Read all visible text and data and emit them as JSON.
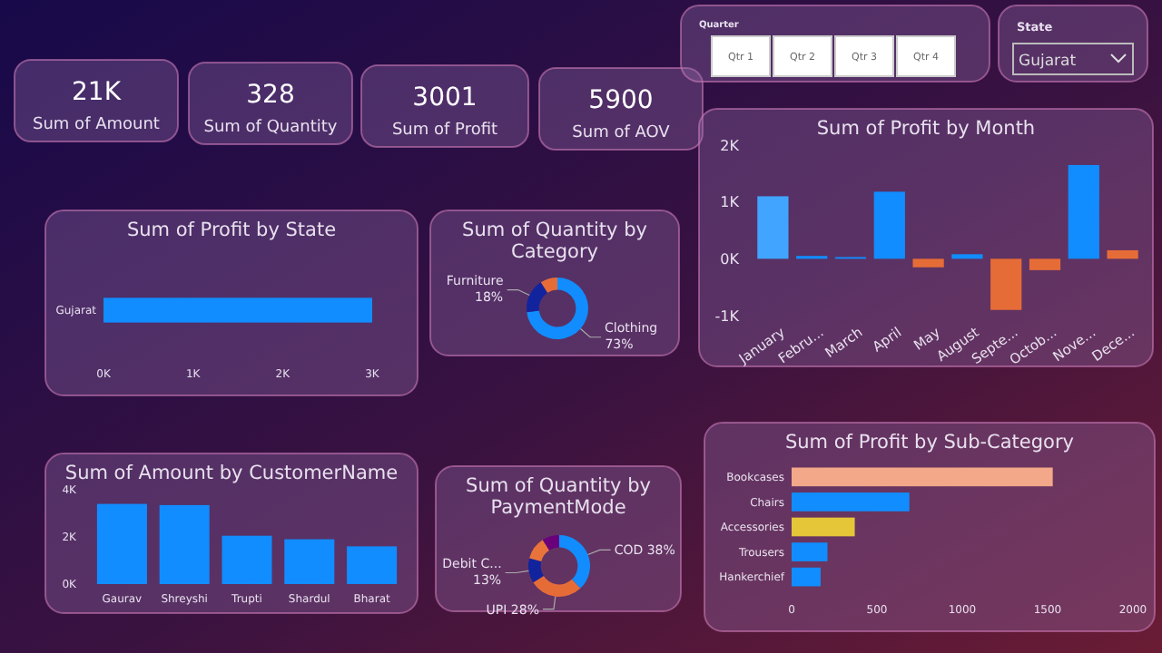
{
  "chart_data": [
    {
      "type": "other",
      "annotations": [
        "21K",
        "Sum of Amount",
        "328",
        "Sum of Quantity",
        "3001",
        "Sum of Profit",
        "5900",
        "Sum of AOV"
      ]
    },
    {
      "type": "other",
      "title": "Quarter",
      "annotations": [
        "Qtr 1",
        "Qtr 2",
        "Qtr 3",
        "Qtr 4"
      ]
    },
    {
      "type": "other",
      "title": "State",
      "annotations": [
        "Gujarat"
      ]
    },
    {
      "type": "bar",
      "title": "Sum of Profit by Month",
      "categories": [
        "January",
        "Febru...",
        "March",
        "April",
        "May",
        "August",
        "Septe...",
        "Octob...",
        "Nove...",
        "Dece..."
      ],
      "values": [
        1100,
        50,
        30,
        1180,
        -150,
        80,
        -900,
        -200,
        1650,
        150
      ],
      "colors": [
        "#41a5ff",
        "#118dff",
        "#118dff",
        "#118dff",
        "#e66c37",
        "#118dff",
        "#e66c37",
        "#e66c37",
        "#118dff",
        "#e66c37"
      ],
      "ylim": [
        -1000,
        2000
      ],
      "yticks": [
        {
          "value": -1000,
          "label": "-1K"
        },
        {
          "value": 0,
          "label": "0K"
        },
        {
          "value": 1000,
          "label": "1K"
        },
        {
          "value": 2000,
          "label": "2K"
        }
      ]
    },
    {
      "type": "bar",
      "orientation": "horizontal",
      "title": "Sum of Profit by State",
      "categories": [
        "Gujarat"
      ],
      "values": [
        3000
      ],
      "color": "#118dff",
      "xlim": [
        0,
        3000
      ],
      "xticks": [
        {
          "value": 0,
          "label": "0K"
        },
        {
          "value": 1000,
          "label": "1K"
        },
        {
          "value": 2000,
          "label": "2K"
        },
        {
          "value": 3000,
          "label": "3K"
        }
      ]
    },
    {
      "type": "donut",
      "title": "Sum of Quantity by Category",
      "categories": [
        "Clothing",
        "Furniture",
        null
      ],
      "values": [
        73,
        18,
        9
      ],
      "colors": [
        "#118dff",
        "#12239e",
        "#e66c37"
      ],
      "value_labels": [
        "73%",
        "18%",
        null
      ]
    },
    {
      "type": "bar",
      "title": "Sum of Amount by CustomerName",
      "categories": [
        "Gaurav",
        "Shreyshi",
        "Trupti",
        "Shardul",
        "Bharat"
      ],
      "values": [
        3400,
        3350,
        2050,
        1900,
        1600
      ],
      "color": "#118dff",
      "ylim": [
        0,
        4000
      ],
      "yticks": [
        {
          "value": 0,
          "label": "0K"
        },
        {
          "value": 2000,
          "label": "2K"
        },
        {
          "value": 4000,
          "label": "4K"
        }
      ]
    },
    {
      "type": "donut",
      "title": "Sum of Quantity by PaymentMode",
      "categories": [
        "COD",
        "UPI",
        "Debit C...",
        null,
        null
      ],
      "values": [
        38,
        28,
        13,
        12,
        9
      ],
      "colors": [
        "#118dff",
        "#e66c37",
        "#12239e",
        "#e8743b",
        "#6b007b"
      ],
      "value_labels": [
        "38%",
        "28%",
        "13%",
        null,
        null
      ]
    },
    {
      "type": "bar",
      "orientation": "horizontal",
      "title": "Sum of Profit by Sub-Category",
      "categories": [
        "Bookcases",
        "Chairs",
        "Accessories",
        "Trousers",
        "Hankerchief"
      ],
      "values": [
        1530,
        690,
        370,
        210,
        170
      ],
      "colors": [
        "#f2a889",
        "#118dff",
        "#e5c638",
        "#118dff",
        "#118dff"
      ],
      "xlim": [
        0,
        2000
      ],
      "xticks": [
        0,
        500,
        1000,
        1500,
        2000
      ]
    }
  ]
}
